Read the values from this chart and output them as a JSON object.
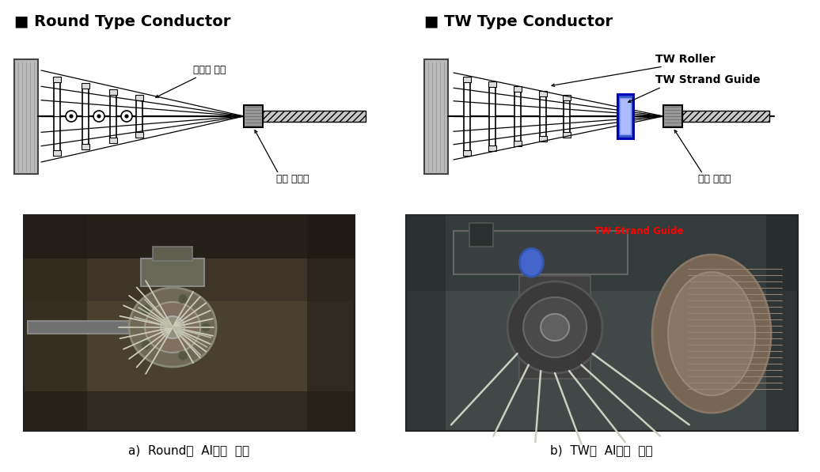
{
  "bg_color": "#ffffff",
  "title_left": "■ Round Type Conductor",
  "title_right": "■ TW Type Conductor",
  "caption_left": "a)  Round형  Al도체  연선",
  "caption_right": "b)  TW형  Al도체  연선",
  "label_freeform": "프리폼 롤러",
  "label_die_left": "집함 다이스",
  "label_die_right": "집함 다이스",
  "label_tw_roller": "TW Roller",
  "label_tw_guide": "TW Strand Guide",
  "label_tw_guide_photo": "TW Strand Guide",
  "title_fontsize": 14,
  "label_fontsize": 9,
  "caption_fontsize": 11,
  "diagram_bg": "#f0f0f0",
  "photo_left_avg": "#7a6e5a",
  "photo_right_avg": "#5a6068"
}
